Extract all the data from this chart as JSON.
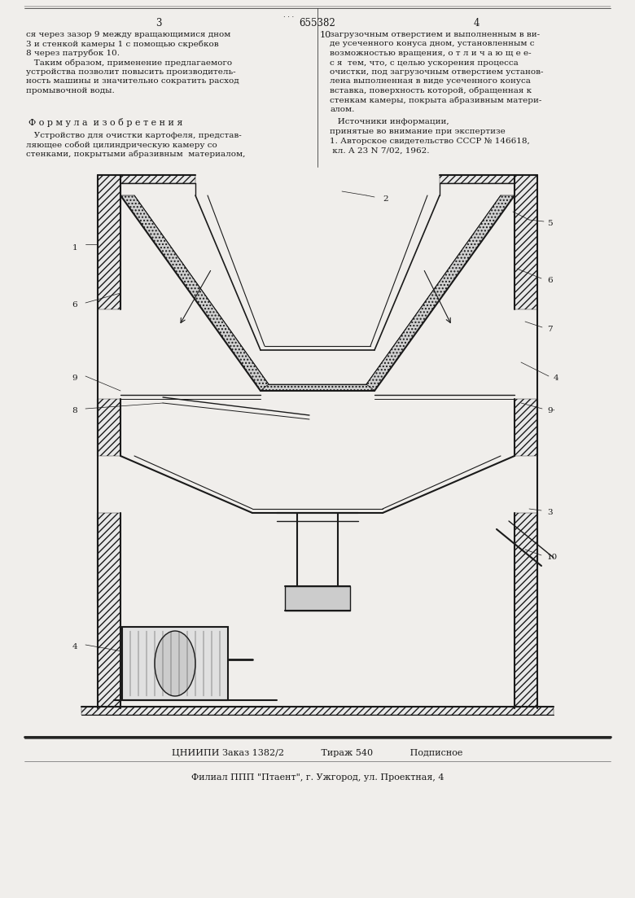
{
  "bg_color": "#f0eeeb",
  "line_color": "#1a1a1a",
  "text_color": "#1a1a1a",
  "page_number_left": "3",
  "patent_number": "655382",
  "page_number_right": "4",
  "top_text_left": [
    "ся через зазор 9 между вращающимися дном",
    "3 и стенкой камеры 1 с помощью скребков",
    "8 через патрубок 10.",
    "   Таким образом, применение предлагаемого",
    "устройства позволит повысить производитель-",
    "ность машины и значительно сократить расход",
    "промывочной воды."
  ],
  "top_text_right": [
    "загрузочным отверстием и выполненным в ви-",
    "де усеченного конуса дном, установленным с",
    "возможностью вращения, о т л и ч а ю щ е е-",
    "с я  тем, что, с целью ускорения процесса",
    "очистки, под загрузочным отверстием установ-",
    "лена выполненная в виде усеченного конуса",
    "вставка, поверхность которой, обращенная к",
    "стенкам камеры, покрыта абразивным матери-",
    "алом."
  ],
  "formula_title": "Ф о р м у л а  и з о б р е т е н и я",
  "formula_text": [
    "   Устройство для очистки картофеля, представ-",
    "ляющее собой цилиндрическую камеру со",
    "стенками, покрытыми абразивным  материалом,"
  ],
  "right_col_text": [
    "   Источники информации,",
    "принятые во внимание при экспертизе",
    "1. Авторское свидетельство СССР № 146618,",
    " кл. А 23 N 7/02, 1962."
  ],
  "bottom_line1": "ЦНИИПИ Заказ 1382/2             Тираж 540             Подписное",
  "bottom_line2": "Филиал ППП \"Птаент\", г. Ужгород, ул. Проектная, 4",
  "col_number": "10"
}
